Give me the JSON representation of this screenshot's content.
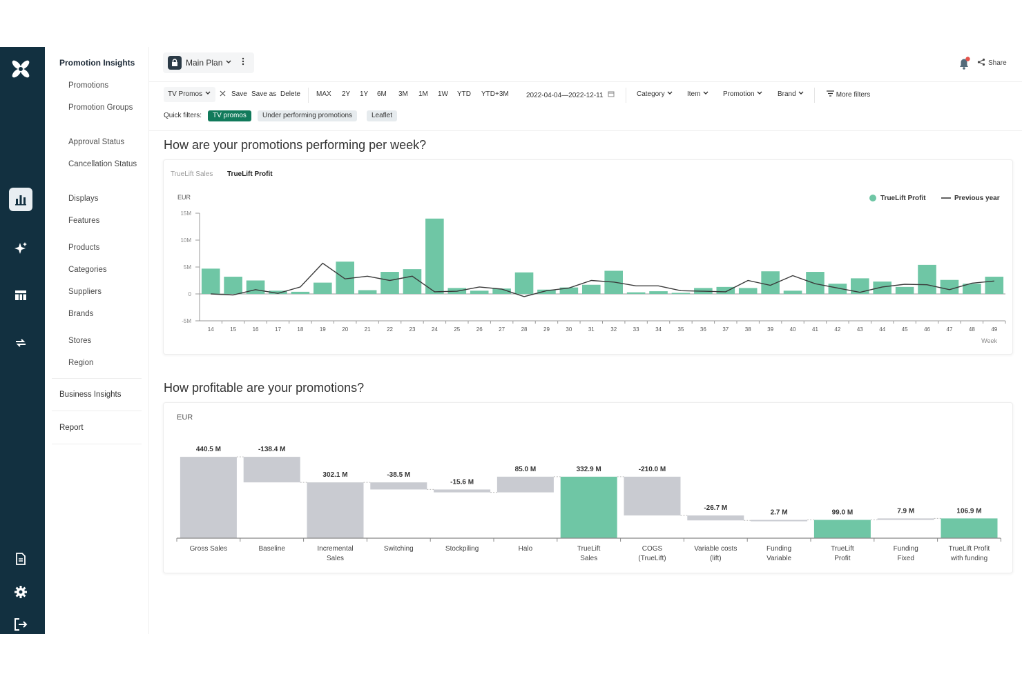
{
  "colors": {
    "accent": "#6fc6a5",
    "rail": "#123040",
    "grey_bar": "#c9cbd1",
    "line": "#3a3a3a"
  },
  "rail": {
    "icons": [
      "logo-icon",
      "chart-icon",
      "sparkle-icon",
      "table-icon",
      "arrows-icon",
      "document-icon",
      "gear-icon",
      "logout-icon"
    ]
  },
  "sidebar": {
    "title": "Promotion Insights",
    "items": [
      "Promotions",
      "Promotion Groups",
      "Approval Status",
      "Cancellation Status",
      "Displays",
      "Features",
      "Products",
      "Categories",
      "Suppliers",
      "Brands",
      "Stores",
      "Region"
    ],
    "sections": [
      "Business Insights",
      "Report"
    ]
  },
  "header": {
    "plan_label": "Main Plan",
    "share_label": "Share"
  },
  "filters": {
    "preset": "TV Promos",
    "save": "Save",
    "save_as": "Save as",
    "delete": "Delete",
    "ranges": [
      "MAX",
      "2Y",
      "1Y",
      "6M",
      "3M",
      "1M",
      "1W",
      "YTD",
      "YTD+3M"
    ],
    "date_range": "2022-04-04—2022-12-11",
    "dropdowns": [
      "Category",
      "Item",
      "Promotion",
      "Brand"
    ],
    "more": "More filters",
    "quick_label": "Quick filters:",
    "quick": [
      "TV promos",
      "Under performing promotions",
      "Leaflet"
    ]
  },
  "weekly": {
    "question": "How are your promotions performing per week?",
    "tabs": [
      "TrueLift Sales",
      "TrueLift Profit"
    ],
    "active_tab": "TrueLift Profit"
  },
  "waterfall_section": {
    "question": "How profitable are your promotions?"
  },
  "chart_data": [
    {
      "type": "bar",
      "ylabel": "EUR",
      "xlabel": "Week",
      "ylim": [
        -5,
        15
      ],
      "y_ticks": [
        "15M",
        "10M",
        "5M",
        "0",
        "-5M"
      ],
      "grid": false,
      "legend_position": "top-right",
      "categories": [
        "14",
        "15",
        "16",
        "17",
        "18",
        "19",
        "20",
        "21",
        "22",
        "23",
        "24",
        "25",
        "26",
        "27",
        "28",
        "29",
        "30",
        "31",
        "32",
        "33",
        "34",
        "35",
        "36",
        "37",
        "38",
        "39",
        "40",
        "41",
        "42",
        "43",
        "44",
        "45",
        "46",
        "47",
        "48",
        "49"
      ],
      "series": [
        {
          "name": "TrueLift Profit",
          "type": "bar",
          "values": [
            4.7,
            3.2,
            2.5,
            0.6,
            0.4,
            2.1,
            6.0,
            0.7,
            4.1,
            4.6,
            14.0,
            1.1,
            0.6,
            1.0,
            4.0,
            0.8,
            1.2,
            1.7,
            4.3,
            0.3,
            0.5,
            0.2,
            1.1,
            1.3,
            1.1,
            4.2,
            0.6,
            4.1,
            1.9,
            2.9,
            2.3,
            1.3,
            5.4,
            2.6,
            1.9,
            3.2
          ]
        },
        {
          "name": "Previous year",
          "type": "line",
          "values": [
            0.0,
            -0.2,
            0.8,
            0.1,
            1.3,
            5.7,
            2.8,
            3.3,
            2.5,
            3.3,
            0.4,
            0.5,
            1.3,
            0.9,
            -0.5,
            0.6,
            1.1,
            2.5,
            2.2,
            1.5,
            1.5,
            0.6,
            0.5,
            0.4,
            2.5,
            1.6,
            3.4,
            1.9,
            1.1,
            0.3,
            1.3,
            1.8,
            1.7,
            0.8,
            2.0,
            2.4
          ]
        }
      ]
    },
    {
      "type": "waterfall",
      "ylabel": "EUR",
      "categories": [
        "Gross Sales",
        "Baseline",
        "Incremental Sales",
        "Switching",
        "Stockpiling",
        "Halo",
        "TrueLift Sales",
        "COGS (TrueLift)",
        "Variable costs (lift)",
        "Funding Variable",
        "TrueLift Profit",
        "Funding Fixed",
        "TrueLift Profit with funding"
      ],
      "values": [
        440.5,
        -138.4,
        302.1,
        -38.5,
        -15.6,
        85.0,
        332.9,
        -210.0,
        -26.7,
        2.7,
        99.0,
        7.9,
        106.9
      ],
      "labels": [
        "440.5 M",
        "-138.4 M",
        "302.1 M",
        "-38.5 M",
        "-15.6 M",
        "85.0 M",
        "332.9 M",
        "-210.0 M",
        "-26.7 M",
        "2.7 M",
        "99.0 M",
        "7.9 M",
        "106.9 M"
      ],
      "kinds": [
        "total",
        "delta",
        "total",
        "delta",
        "delta",
        "delta",
        "highlight",
        "delta",
        "delta",
        "delta",
        "highlight",
        "delta",
        "highlight"
      ]
    }
  ]
}
